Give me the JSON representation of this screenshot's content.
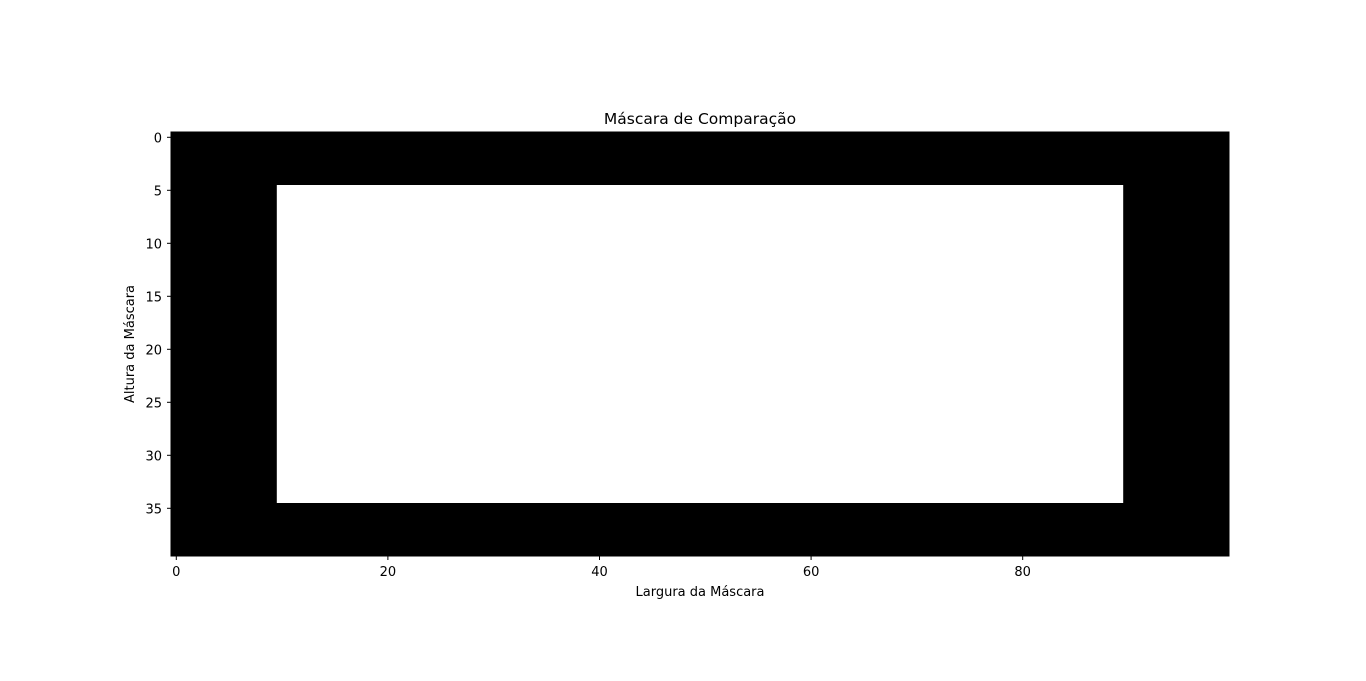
{
  "chart_data": {
    "type": "heatmap",
    "title": "Máscara de Comparação",
    "xlabel": "Largura da Máscara",
    "ylabel": "Altura da Máscara",
    "width": 100,
    "height": 40,
    "xlim": [
      -0.5,
      99.5
    ],
    "ylim": [
      39.5,
      -0.5
    ],
    "xticks": [
      0,
      20,
      40,
      60,
      80
    ],
    "yticks": [
      0,
      5,
      10,
      15,
      20,
      25,
      30,
      35
    ],
    "grid": false,
    "background_value": 0,
    "regions": [
      {
        "value": 1,
        "x_start": 10,
        "x_end": 89,
        "y_start": 5,
        "y_end": 34
      }
    ],
    "colors": {
      "0": "#000000",
      "1": "#ffffff"
    }
  }
}
